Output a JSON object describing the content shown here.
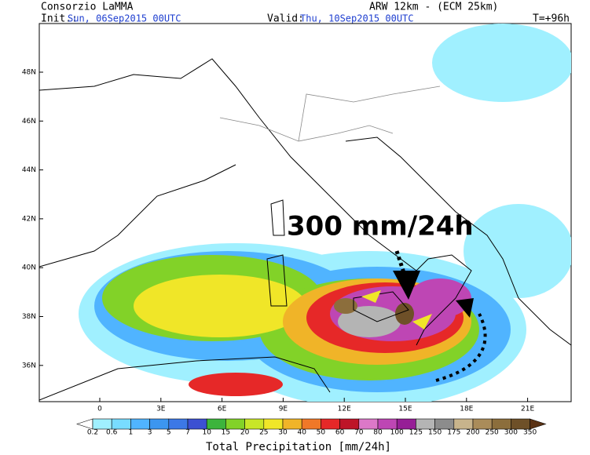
{
  "header": {
    "source": "Consorzio LaMMA",
    "init_label": "Init.:",
    "init_time": "Sun, 06Sep2015 00UTC",
    "valid_label": "Valid:",
    "valid_time": "Thu, 10Sep2015 00UTC",
    "model": "ARW 12km - (ECM 25km)",
    "lead_time": "T=+96h"
  },
  "map": {
    "lat_labels": [
      "48N",
      "46N",
      "44N",
      "42N",
      "40N",
      "38N",
      "36N"
    ],
    "lon_labels": [
      "0",
      "3E",
      "6E",
      "9E",
      "12E",
      "15E",
      "18E",
      "21E"
    ],
    "annotation": "300 mm/24h"
  },
  "colorbar": {
    "title": "Total Precipitation [mm/24h]",
    "labels": [
      0.2,
      0.6,
      1,
      3,
      5,
      7,
      10,
      15,
      20,
      25,
      30,
      40,
      50,
      60,
      70,
      80,
      100,
      125,
      150,
      175,
      200,
      250,
      300,
      350
    ],
    "colors": [
      "#ffffff",
      "#a0f0ff",
      "#78dcff",
      "#50b4ff",
      "#3c96f0",
      "#3c78e6",
      "#3c50d2",
      "#3cb43c",
      "#82d228",
      "#c8e628",
      "#f0e628",
      "#f0b428",
      "#f07828",
      "#e62828",
      "#be1428",
      "#dc78c8",
      "#be46b4",
      "#961e96",
      "#b4b4b4",
      "#8c8c8c",
      "#c8b48c",
      "#aa8c5a",
      "#8c6e3c",
      "#6e5028",
      "#5a3214"
    ]
  }
}
